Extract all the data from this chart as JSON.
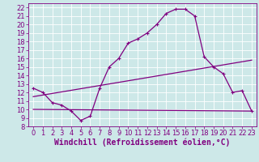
{
  "xlabel": "Windchill (Refroidissement éolien,°C)",
  "bg_color": "#cde8e8",
  "line_color": "#800080",
  "grid_color": "#ffffff",
  "xlim": [
    -0.5,
    23.5
  ],
  "ylim": [
    8,
    22.5
  ],
  "yticks": [
    8,
    9,
    10,
    11,
    12,
    13,
    14,
    15,
    16,
    17,
    18,
    19,
    20,
    21,
    22
  ],
  "xticks": [
    0,
    1,
    2,
    3,
    4,
    5,
    6,
    7,
    8,
    9,
    10,
    11,
    12,
    13,
    14,
    15,
    16,
    17,
    18,
    19,
    20,
    21,
    22,
    23
  ],
  "curve1_x": [
    0,
    1,
    2,
    3,
    4,
    5,
    6,
    7,
    8,
    9,
    10,
    11,
    12,
    13,
    14,
    15,
    16,
    17,
    18,
    19,
    20,
    21,
    22,
    23
  ],
  "curve1_y": [
    12.5,
    12.0,
    10.8,
    10.5,
    9.8,
    8.7,
    9.2,
    12.5,
    15.0,
    16.0,
    17.8,
    18.3,
    19.0,
    20.0,
    21.3,
    21.8,
    21.8,
    21.0,
    16.2,
    15.0,
    14.2,
    12.0,
    12.2,
    9.8
  ],
  "line2_x": [
    0,
    23
  ],
  "line2_y": [
    10.0,
    9.8
  ],
  "line3_x": [
    0,
    23
  ],
  "line3_y": [
    11.5,
    15.8
  ],
  "xlabel_fontsize": 7,
  "tick_fontsize": 6,
  "marker": "+"
}
